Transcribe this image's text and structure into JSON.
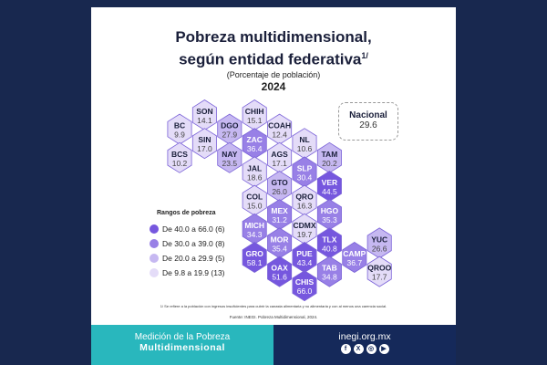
{
  "title_line1": "Pobreza multidimensional,",
  "title_line2": "según entidad federativa",
  "title_sup": "1/",
  "subtitle": "(Porcentaje de población)",
  "year": "2024",
  "nacional": {
    "label": "Nacional",
    "value": "29.6"
  },
  "legend": {
    "title": "Rangos de pobreza",
    "items": [
      {
        "label": "De 40.0 a 66.0 (6)",
        "color": "#7657de",
        "min": 40.0
      },
      {
        "label": "De 30.0 a 39.0 (8)",
        "color": "#9880e6",
        "min": 30.0
      },
      {
        "label": "De 20.0 a 29.9 (5)",
        "color": "#c6b8f1",
        "min": 20.0
      },
      {
        "label": "De 9.8 a 19.9 (13)",
        "color": "#e4dcf8",
        "min": 0
      }
    ]
  },
  "states": [
    {
      "code": "SON",
      "value": "14.1"
    },
    {
      "code": "CHIH",
      "value": "15.1"
    },
    {
      "code": "BC",
      "value": "9.9"
    },
    {
      "code": "DGO",
      "value": "27.9"
    },
    {
      "code": "COAH",
      "value": "12.4"
    },
    {
      "code": "SIN",
      "value": "17.0"
    },
    {
      "code": "ZAC",
      "value": "36.4"
    },
    {
      "code": "NL",
      "value": "10.6"
    },
    {
      "code": "BCS",
      "value": "10.2"
    },
    {
      "code": "NAY",
      "value": "23.5"
    },
    {
      "code": "AGS",
      "value": "17.1"
    },
    {
      "code": "TAM",
      "value": "20.2"
    },
    {
      "code": "JAL",
      "value": "18.6"
    },
    {
      "code": "SLP",
      "value": "30.4"
    },
    {
      "code": "GTO",
      "value": "26.0"
    },
    {
      "code": "VER",
      "value": "44.5"
    },
    {
      "code": "COL",
      "value": "15.0"
    },
    {
      "code": "QRO",
      "value": "16.3"
    },
    {
      "code": "MEX",
      "value": "31.2"
    },
    {
      "code": "HGO",
      "value": "35.3"
    },
    {
      "code": "MICH",
      "value": "34.3"
    },
    {
      "code": "CDMX",
      "value": "19.7"
    },
    {
      "code": "MOR",
      "value": "35.4"
    },
    {
      "code": "TLX",
      "value": "40.8"
    },
    {
      "code": "YUC",
      "value": "26.6"
    },
    {
      "code": "GRO",
      "value": "58.1"
    },
    {
      "code": "PUE",
      "value": "43.4"
    },
    {
      "code": "CAMP",
      "value": "36.7"
    },
    {
      "code": "OAX",
      "value": "51.6"
    },
    {
      "code": "TAB",
      "value": "34.8"
    },
    {
      "code": "QROO",
      "value": "17.7"
    },
    {
      "code": "CHIS",
      "value": "66.0"
    }
  ],
  "note": "1/ Se refiere a la población con ingresos insuficientes para cubrir la canasta alimentaria y no alimentaria y con al menos una carencia social.",
  "source": "Fuente: INEGI. Pobreza Multidimensional, 2024.",
  "banner": {
    "line1": "Medición de la Pobreza",
    "line2": "Multidimensional",
    "url": "inegi.org.mx",
    "social": [
      "f",
      "X",
      "◎",
      "▶"
    ]
  }
}
